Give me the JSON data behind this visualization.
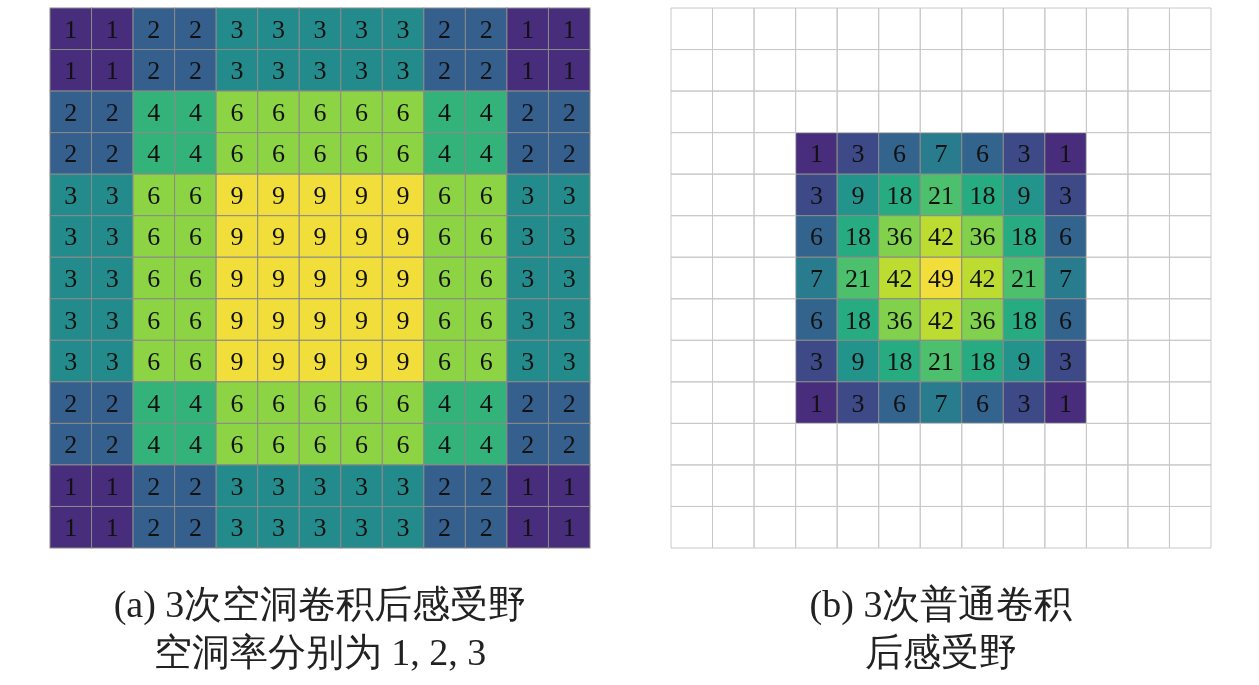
{
  "chart_data": [
    {
      "type": "heatmap",
      "title": "(a) 3次空洞卷积后感受野",
      "subtitle": "空洞率分别为 1, 2, 3",
      "data_labels": true,
      "categories": [
        null,
        null,
        null,
        null,
        null,
        null,
        null,
        null,
        null,
        null,
        null,
        null,
        null
      ],
      "y_categories": [
        null,
        null,
        null,
        null,
        null,
        null,
        null,
        null,
        null,
        null,
        null,
        null,
        null
      ],
      "cells": [
        [
          1,
          1,
          2,
          2,
          3,
          3,
          3,
          3,
          3,
          2,
          2,
          1,
          1
        ],
        [
          1,
          1,
          2,
          2,
          3,
          3,
          3,
          3,
          3,
          2,
          2,
          1,
          1
        ],
        [
          2,
          2,
          4,
          4,
          6,
          6,
          6,
          6,
          6,
          4,
          4,
          2,
          2
        ],
        [
          2,
          2,
          4,
          4,
          6,
          6,
          6,
          6,
          6,
          4,
          4,
          2,
          2
        ],
        [
          3,
          3,
          6,
          6,
          9,
          9,
          9,
          9,
          9,
          6,
          6,
          3,
          3
        ],
        [
          3,
          3,
          6,
          6,
          9,
          9,
          9,
          9,
          9,
          6,
          6,
          3,
          3
        ],
        [
          3,
          3,
          6,
          6,
          9,
          9,
          9,
          9,
          9,
          6,
          6,
          3,
          3
        ],
        [
          3,
          3,
          6,
          6,
          9,
          9,
          9,
          9,
          9,
          6,
          6,
          3,
          3
        ],
        [
          3,
          3,
          6,
          6,
          9,
          9,
          9,
          9,
          9,
          6,
          6,
          3,
          3
        ],
        [
          2,
          2,
          4,
          4,
          6,
          6,
          6,
          6,
          6,
          4,
          4,
          2,
          2
        ],
        [
          2,
          2,
          4,
          4,
          6,
          6,
          6,
          6,
          6,
          4,
          4,
          2,
          2
        ],
        [
          1,
          1,
          2,
          2,
          3,
          3,
          3,
          3,
          3,
          2,
          2,
          1,
          1
        ],
        [
          1,
          1,
          2,
          2,
          3,
          3,
          3,
          3,
          3,
          2,
          2,
          1,
          1
        ]
      ]
    },
    {
      "type": "heatmap",
      "title": "(b) 3次普通卷积",
      "subtitle": "后感受野",
      "data_labels": true,
      "categories": [
        null,
        null,
        null,
        null,
        null,
        null,
        null
      ],
      "y_categories": [
        null,
        null,
        null,
        null,
        null,
        null,
        null
      ],
      "cells": [
        [
          1,
          3,
          6,
          7,
          6,
          3,
          1
        ],
        [
          3,
          9,
          18,
          21,
          18,
          9,
          3
        ],
        [
          6,
          18,
          36,
          42,
          36,
          18,
          6
        ],
        [
          7,
          21,
          42,
          49,
          42,
          21,
          7
        ],
        [
          6,
          18,
          36,
          42,
          36,
          18,
          6
        ],
        [
          3,
          9,
          18,
          21,
          18,
          9,
          3
        ],
        [
          1,
          3,
          6,
          7,
          6,
          3,
          1
        ]
      ]
    }
  ]
}
